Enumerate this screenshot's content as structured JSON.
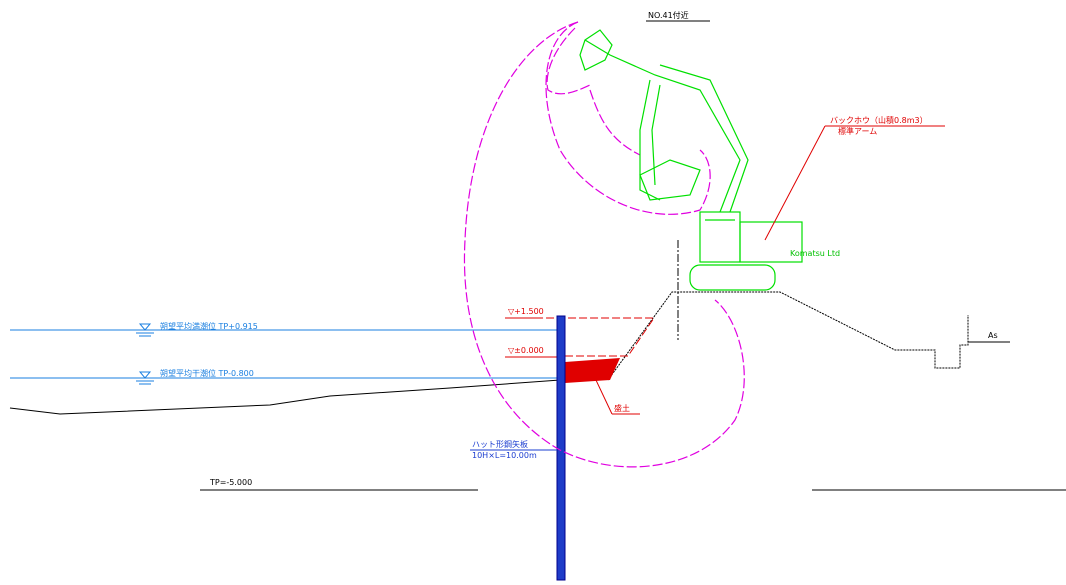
{
  "header": {
    "title": "NO.41付近"
  },
  "machine": {
    "name": "バックホウ（山積0.8m3）",
    "arm": "標準アーム",
    "maker": "Komatsu Ltd"
  },
  "levels": {
    "high_water": "朔望平均満潮位 TP+0.915",
    "low_water": "朔望平均干潮位 TP-0.800",
    "top": "▽+1.500",
    "zero": "▽±0.000",
    "bottom": "TP=-5.000"
  },
  "labels": {
    "fill": "盛土",
    "pile_name": "ハット形鋼矢板",
    "pile_spec": "10H×L=10.00m",
    "as": "As"
  }
}
